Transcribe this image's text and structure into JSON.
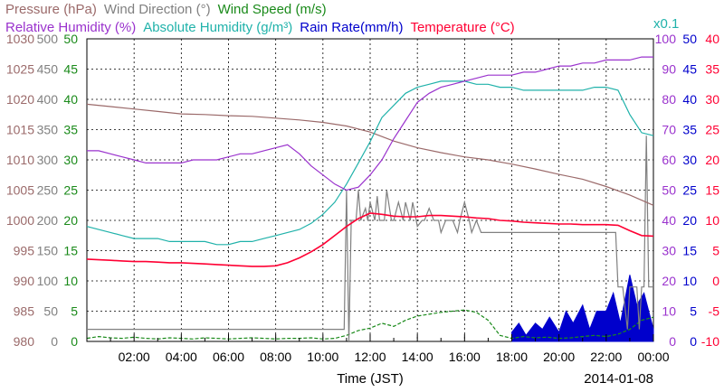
{
  "chart_data": {
    "type": "line",
    "date_label": "2014-01-08",
    "xlabel": "Time (JST)",
    "x_ticks": [
      "02:00",
      "04:00",
      "06:00",
      "08:00",
      "10:00",
      "12:00",
      "14:00",
      "16:00",
      "18:00",
      "20:00",
      "22:00",
      "00:00"
    ],
    "xlim_hours": [
      0,
      24
    ],
    "grid": true,
    "legend_rows": [
      [
        {
          "text": "Pressure (hPa)",
          "color": "#9b6a6a"
        },
        {
          "text": "Wind Direction (°)",
          "color": "#808080"
        },
        {
          "text": "Wind Speed (m/s)",
          "color": "#1a8a1a"
        }
      ],
      [
        {
          "text": "Relative Humidity (%)",
          "color": "#9a32cd"
        },
        {
          "text": "Absolute Humidity (g/m³)",
          "color": "#20b2aa"
        },
        {
          "text": "Rain Rate(mm/h)",
          "color": "#0000cc"
        },
        {
          "text": "Temperature (°C)",
          "color": "#ff0033"
        }
      ]
    ],
    "multiplier_note": "x0.1",
    "axes": [
      {
        "name": "Pressure",
        "unit": "hPa",
        "color": "#9b6a6a",
        "ticks": [
          "1030",
          "1025",
          "1020",
          "1015",
          "1010",
          "1005",
          "1000",
          "995",
          "990",
          "985",
          "980"
        ]
      },
      {
        "name": "Wind Direction",
        "unit": "deg",
        "color": "#808080",
        "ticks": [
          "500",
          "450",
          "400",
          "350",
          "300",
          "250",
          "200",
          "150",
          "100",
          "50",
          "0"
        ]
      },
      {
        "name": "Wind Speed",
        "unit": "m/s",
        "color": "#1a8a1a",
        "ticks": [
          "50",
          "45",
          "40",
          "35",
          "30",
          "25",
          "20",
          "15",
          "10",
          "5",
          "0"
        ]
      },
      {
        "name": "Relative Humidity",
        "unit": "%",
        "color": "#9a32cd",
        "ticks": [
          "100",
          "90",
          "80",
          "70",
          "60",
          "50",
          "40",
          "30",
          "20",
          "10",
          "0"
        ]
      },
      {
        "name": "Rain Rate",
        "unit": "mm/h",
        "color": "#0000cc",
        "ticks": [
          "50",
          "45",
          "40",
          "35",
          "30",
          "25",
          "20",
          "15",
          "10",
          "5",
          "0"
        ]
      },
      {
        "name": "Temperature",
        "unit": "°C",
        "color": "#ff0033",
        "ticks": [
          "40",
          "35",
          "30",
          "25",
          "20",
          "15",
          "10",
          "5",
          "0",
          "-5",
          "-10"
        ]
      }
    ],
    "series": [
      {
        "name": "Pressure",
        "color": "#9b6a6a",
        "unit": "hPa",
        "x": [
          0,
          1,
          2,
          3,
          4,
          5,
          6,
          7,
          8,
          9,
          10,
          11,
          12,
          13,
          14,
          15,
          16,
          17,
          18,
          19,
          20,
          21,
          22,
          23,
          24
        ],
        "y": [
          1019.2,
          1018.8,
          1018.4,
          1018.0,
          1017.6,
          1017.5,
          1017.3,
          1017.2,
          1016.9,
          1016.6,
          1016.2,
          1015.6,
          1014.6,
          1013.1,
          1012.0,
          1011.2,
          1010.5,
          1010.0,
          1009.3,
          1008.5,
          1007.6,
          1006.8,
          1005.6,
          1004.2,
          1002.5
        ]
      },
      {
        "name": "Relative Humidity",
        "color": "#9a32cd",
        "unit": "%",
        "x": [
          0,
          0.5,
          1,
          1.5,
          2,
          2.5,
          3,
          3.5,
          4,
          4.5,
          5,
          5.5,
          6,
          6.5,
          7,
          7.5,
          8,
          8.5,
          9,
          9.5,
          10,
          10.5,
          11,
          11.5,
          12,
          12.5,
          13,
          13.5,
          14,
          14.5,
          15,
          15.5,
          16,
          16.5,
          17,
          17.5,
          18,
          18.5,
          19,
          19.5,
          20,
          20.5,
          21,
          21.5,
          22,
          22.5,
          23,
          23.5,
          24
        ],
        "y": [
          63,
          63,
          62,
          61,
          60,
          59,
          59,
          59,
          59,
          60,
          60,
          60,
          61,
          62,
          62,
          63,
          64,
          65,
          62,
          58,
          55,
          52,
          50,
          51,
          55,
          60,
          67,
          73,
          79,
          82,
          84,
          85,
          86,
          87,
          88,
          88,
          88,
          89,
          89,
          90,
          91,
          91,
          92,
          92,
          93,
          93,
          93,
          94,
          94
        ]
      },
      {
        "name": "Absolute Humidity",
        "color": "#20b2aa",
        "unit": "g/m3 x0.1",
        "x": [
          0,
          0.5,
          1,
          1.5,
          2,
          2.5,
          3,
          3.5,
          4,
          4.5,
          5,
          5.5,
          6,
          6.5,
          7,
          7.5,
          8,
          8.5,
          9,
          9.5,
          10,
          10.5,
          11,
          11.5,
          12,
          12.5,
          13,
          13.5,
          14,
          14.5,
          15,
          15.5,
          16,
          16.5,
          17,
          17.5,
          18,
          18.5,
          19,
          19.5,
          20,
          20.5,
          21,
          21.5,
          22,
          22.5,
          23,
          23.5,
          24
        ],
        "y": [
          3.8,
          3.7,
          3.6,
          3.5,
          3.4,
          3.4,
          3.4,
          3.3,
          3.3,
          3.3,
          3.3,
          3.2,
          3.2,
          3.3,
          3.3,
          3.4,
          3.5,
          3.6,
          3.7,
          3.9,
          4.2,
          4.6,
          5.2,
          5.9,
          6.6,
          7.4,
          7.8,
          8.2,
          8.4,
          8.5,
          8.6,
          8.6,
          8.6,
          8.5,
          8.5,
          8.4,
          8.4,
          8.3,
          8.3,
          8.3,
          8.3,
          8.3,
          8.3,
          8.4,
          8.4,
          8.3,
          7.5,
          6.9,
          6.8
        ]
      },
      {
        "name": "Temperature",
        "color": "#ff0033",
        "unit": "°C",
        "x": [
          0,
          0.5,
          1,
          1.5,
          2,
          2.5,
          3,
          3.5,
          4,
          4.5,
          5,
          5.5,
          6,
          6.5,
          7,
          7.5,
          8,
          8.5,
          9,
          9.5,
          10,
          10.5,
          11,
          11.5,
          12,
          12.5,
          13,
          13.5,
          14,
          14.5,
          15,
          15.5,
          16,
          16.5,
          17,
          17.5,
          18,
          18.5,
          19,
          19.5,
          20,
          20.5,
          21,
          21.5,
          22,
          22.5,
          23,
          23.5,
          24
        ],
        "y": [
          3.6,
          3.5,
          3.4,
          3.3,
          3.2,
          3.2,
          3.1,
          3.0,
          3.0,
          2.9,
          2.8,
          2.7,
          2.6,
          2.5,
          2.4,
          2.4,
          2.5,
          3.0,
          3.8,
          4.8,
          6.0,
          7.5,
          9.0,
          10.3,
          11.2,
          11.0,
          10.7,
          10.6,
          10.6,
          10.8,
          10.8,
          10.7,
          10.6,
          10.4,
          10.3,
          10.0,
          9.9,
          9.7,
          9.6,
          9.5,
          9.4,
          9.4,
          9.3,
          9.3,
          9.3,
          9.2,
          8.3,
          7.5,
          7.4
        ]
      },
      {
        "name": "Wind Direction",
        "color": "#808080",
        "unit": "deg",
        "x": [
          0,
          0.2,
          10.9,
          11.0,
          11.1,
          11.2,
          11.4,
          11.5,
          11.6,
          11.8,
          11.9,
          12.0,
          12.2,
          12.3,
          12.4,
          12.6,
          12.7,
          12.9,
          13.0,
          13.2,
          13.4,
          13.5,
          13.7,
          13.8,
          14.0,
          14.2,
          14.3,
          14.5,
          14.7,
          14.9,
          15.0,
          15.2,
          15.4,
          15.5,
          15.7,
          15.8,
          16.0,
          16.2,
          16.3,
          16.5,
          16.7,
          17.0,
          20.0,
          22.4,
          22.5,
          22.7,
          22.9,
          23.0,
          23.2,
          23.3,
          23.4,
          23.5,
          23.6,
          23.7,
          23.8,
          23.9,
          24
        ],
        "y": [
          20,
          20,
          20,
          250,
          0,
          200,
          200,
          250,
          200,
          220,
          200,
          230,
          200,
          240,
          200,
          200,
          250,
          200,
          200,
          230,
          200,
          230,
          200,
          230,
          190,
          200,
          200,
          220,
          200,
          200,
          180,
          200,
          200,
          200,
          180,
          200,
          230,
          200,
          180,
          200,
          180,
          180,
          180,
          180,
          90,
          90,
          20,
          90,
          90,
          90,
          20,
          90,
          90,
          340,
          90,
          90,
          90
        ]
      },
      {
        "name": "Wind Speed",
        "color": "#1a8a1a",
        "unit": "m/s",
        "x": [
          0,
          0.5,
          1,
          1.5,
          2,
          2.5,
          3,
          3.5,
          4,
          4.5,
          5,
          5.5,
          6,
          6.5,
          7,
          7.5,
          8,
          8.5,
          9,
          9.5,
          10,
          10.5,
          11,
          11.5,
          12,
          12.5,
          13,
          13.5,
          14,
          14.5,
          15,
          15.5,
          16,
          16.5,
          17,
          17.5,
          18,
          18.5,
          19,
          19.5,
          20,
          20.5,
          21,
          21.5,
          22,
          22.5,
          23,
          23.5,
          24
        ],
        "y": [
          0.5,
          0.8,
          0.6,
          0.5,
          0.7,
          0.5,
          0.4,
          0.6,
          0.5,
          0.4,
          0.6,
          0.5,
          0.4,
          0.5,
          0.6,
          0.5,
          0.4,
          0.5,
          0.5,
          0.6,
          0.4,
          0.5,
          1.0,
          1.8,
          2.2,
          3.0,
          2.5,
          3.5,
          4.2,
          4.5,
          4.8,
          5.0,
          5.2,
          4.8,
          3.5,
          1.0,
          0.5,
          0.8,
          0.6,
          0.7,
          0.5,
          0.6,
          0.8,
          1.0,
          0.8,
          1.2,
          2.0,
          3.5,
          4.0
        ]
      },
      {
        "name": "Rain Rate",
        "color": "#0000cc",
        "unit": "mm/h",
        "x": [
          18.0,
          18.3,
          18.6,
          19.0,
          19.3,
          19.6,
          20.0,
          20.3,
          20.6,
          21.0,
          21.3,
          21.6,
          22.0,
          22.3,
          22.6,
          23.0,
          23.3,
          23.6,
          24.0
        ],
        "y": [
          1.5,
          3.0,
          1.0,
          3.0,
          2.0,
          4.0,
          1.5,
          5.0,
          3.0,
          6.0,
          2.0,
          5.0,
          5.0,
          8.0,
          3.0,
          11.0,
          6.0,
          8.0,
          2.0
        ]
      }
    ]
  }
}
